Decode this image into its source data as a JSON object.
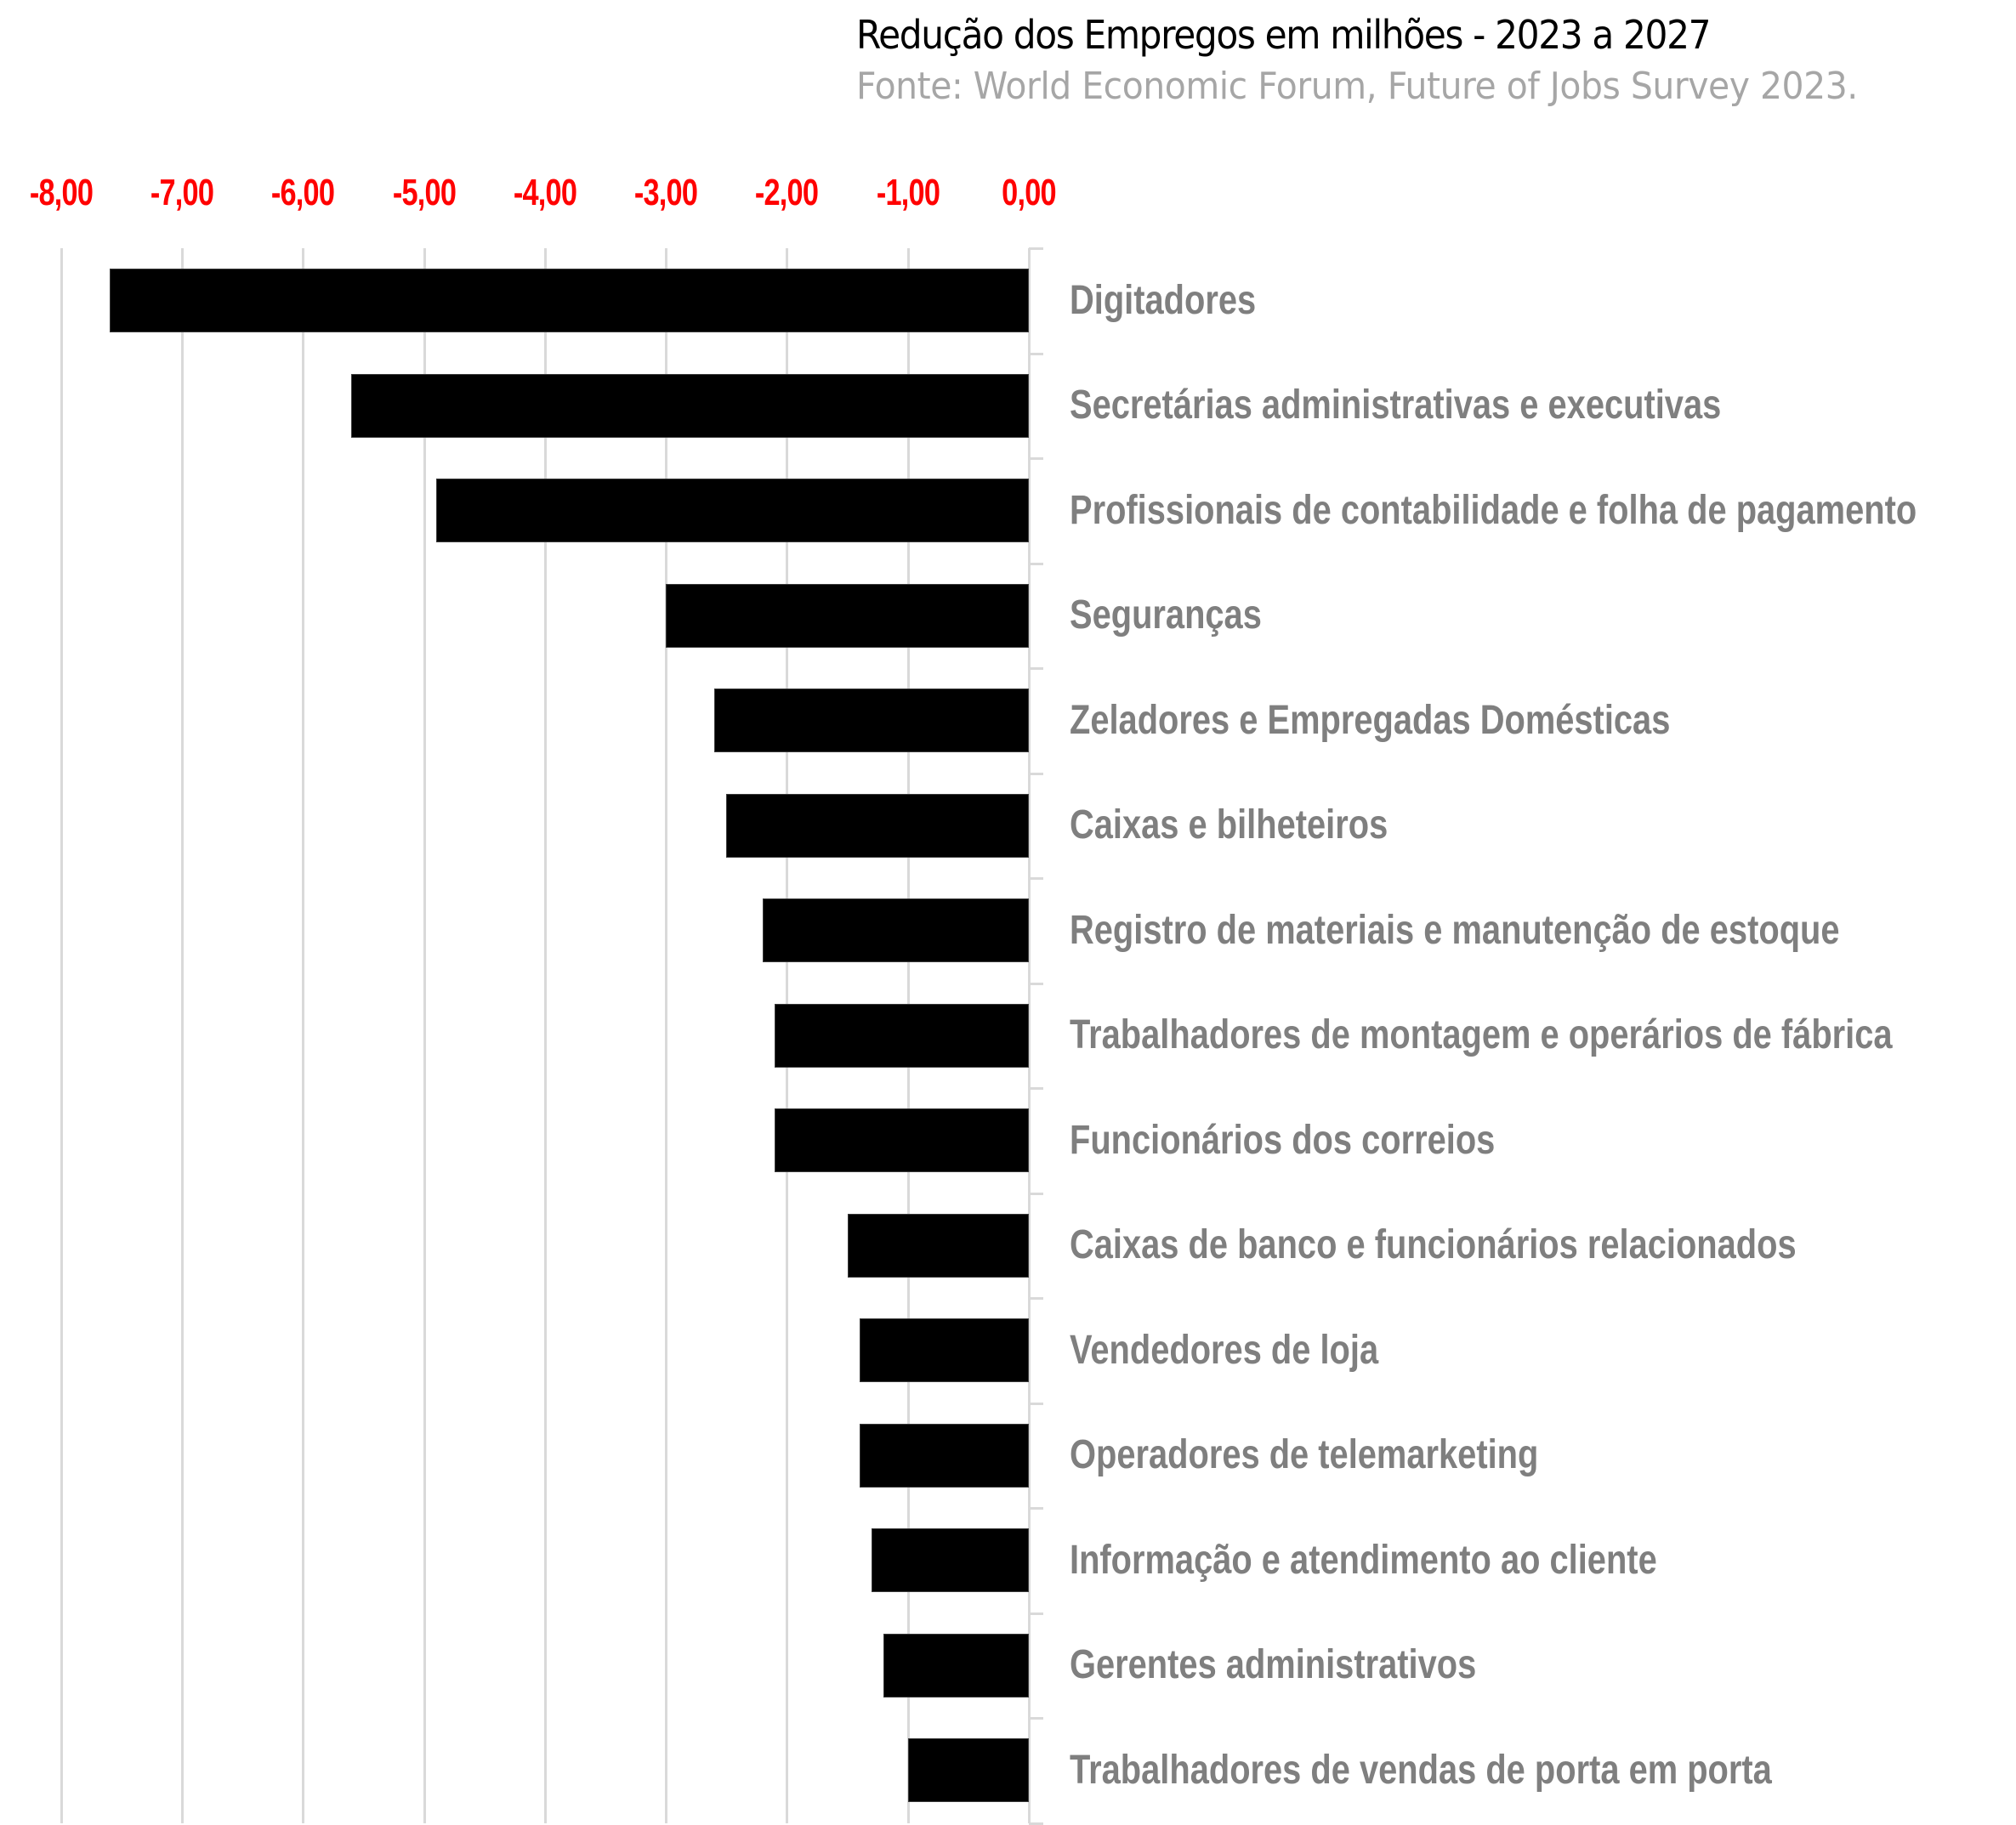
{
  "header": {
    "title": "Redução dos Empregos em milhões - 2023 a 2027",
    "subtitle": "Fonte: World Economic Forum, Future of Jobs Survey 2023."
  },
  "axis": {
    "tick_labels": [
      "-8,00",
      "-7,00",
      "-6,00",
      "-5,00",
      "-4,00",
      "-3,00",
      "-2,00",
      "-1,00",
      "0,00"
    ],
    "tick_values": [
      -8,
      -7,
      -6,
      -5,
      -4,
      -3,
      -2,
      -1,
      0
    ],
    "tick_color": "#ff0000"
  },
  "colors": {
    "bar": "#000000",
    "label": "#7f7f7f",
    "grid": "#d9d9d9",
    "title": "#000000",
    "subtitle": "#a6a6a6"
  },
  "chart_data": {
    "type": "bar",
    "orientation": "horizontal",
    "title": "Redução dos Empregos em milhões - 2023 a 2027",
    "subtitle": "Fonte: World Economic Forum, Future of Jobs Survey 2023.",
    "xlabel": "",
    "ylabel": "",
    "xlim": [
      -8,
      0
    ],
    "x_axis_position": "top",
    "grid": true,
    "legend": null,
    "categories": [
      "Digitadores",
      "Secretárias administrativas e executivas",
      "Profissionais de contabilidade e folha de pagamento",
      "Seguranças",
      "Zeladores e Empregadas Domésticas",
      "Caixas e bilheteiros",
      "Registro de materiais e manutenção de estoque",
      "Trabalhadores de montagem e operários de fábrica",
      "Funcionários dos correios",
      "Caixas de banco e funcionários relacionados",
      "Vendedores de loja",
      "Operadores de telemarketing",
      "Informação e atendimento ao cliente",
      "Gerentes administrativos",
      "Trabalhadores de vendas de porta em porta"
    ],
    "values": [
      -7.6,
      -5.6,
      -4.9,
      -3.0,
      -2.6,
      -2.5,
      -2.2,
      -2.1,
      -2.1,
      -1.5,
      -1.4,
      -1.4,
      -1.3,
      -1.2,
      -1.0
    ]
  }
}
